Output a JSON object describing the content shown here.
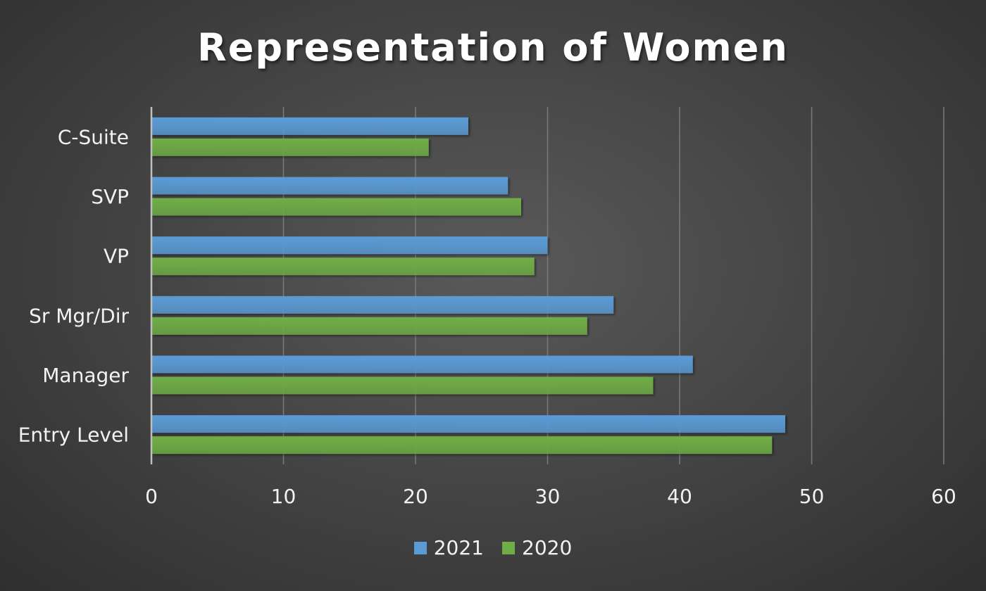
{
  "chart_data": {
    "type": "bar",
    "orientation": "horizontal",
    "title": "Representation of Women",
    "xlabel": "",
    "ylabel": "",
    "categories": [
      "C-Suite",
      "SVP",
      "VP",
      "Sr Mgr/Dir",
      "Manager",
      "Entry Level"
    ],
    "series": [
      {
        "name": "2021",
        "color": "#5b9bd5",
        "values": [
          24,
          27,
          30,
          35,
          41,
          48
        ]
      },
      {
        "name": "2020",
        "color": "#70ad47",
        "values": [
          21,
          28,
          29,
          33,
          38,
          47
        ]
      }
    ],
    "xlim": [
      0,
      60
    ],
    "xticks": [
      0,
      10,
      20,
      30,
      40,
      50,
      60
    ],
    "grid": "vertical",
    "legend_position": "bottom"
  }
}
